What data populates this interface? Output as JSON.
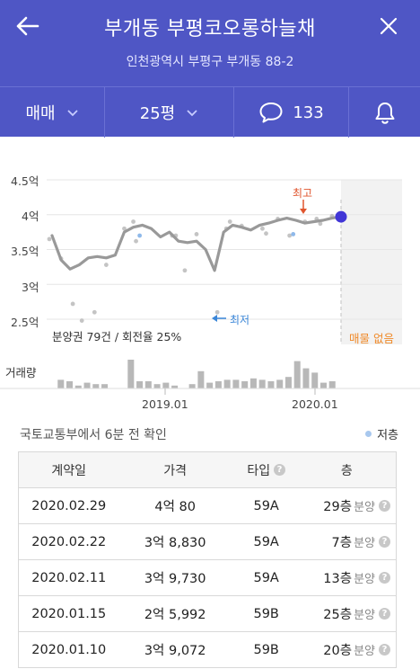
{
  "header": {
    "title": "부개동 부평코오롱하늘채",
    "address": "인천광역시 부평구 부개동 88-2"
  },
  "toolbar": {
    "trade_type": "매매",
    "size": "25평",
    "comment_count": "133"
  },
  "chart": {
    "sub_label": "분양권 79건 / 회전율 25%",
    "no_listing": "매물 없음",
    "volume_label": "거래량",
    "high_label": "최고",
    "low_label": "최저",
    "y_ticks": [
      "4.5억",
      "4억",
      "3.5억",
      "3억",
      "2.5억"
    ],
    "x_ticks": [
      "2019.01",
      "2020.01"
    ],
    "colors": {
      "line": "#999999",
      "current": "#4136d6",
      "low": "#3a86d8",
      "high": "#e0552e",
      "bar": "#b8b8b8"
    }
  },
  "chart_data": {
    "type": "line",
    "ylim": [
      2.5,
      4.5
    ],
    "y_unit": "억",
    "series": [
      {
        "values": [
          3.7,
          3.35,
          3.22,
          3.28,
          3.38,
          3.4,
          3.38,
          3.42,
          3.75,
          3.82,
          3.85,
          3.8,
          3.68,
          3.75,
          3.62,
          3.6,
          3.62,
          3.5,
          3.2,
          3.75,
          3.85,
          3.82,
          3.78,
          3.85,
          3.88,
          3.92,
          3.95,
          3.92,
          3.88,
          3.9,
          3.92,
          3.95,
          3.97
        ]
      }
    ],
    "current_value": 3.97,
    "volume_relative": [
      0,
      0.3,
      0.25,
      0.1,
      0.2,
      0.15,
      0.15,
      0,
      0,
      1.0,
      0.25,
      0.25,
      0.15,
      0.2,
      0.1,
      0,
      0.15,
      0.6,
      0.2,
      0.25,
      0.3,
      0.3,
      0.25,
      0.35,
      0.3,
      0.25,
      0.3,
      0.4,
      0.95,
      0.7,
      0.55,
      0.2,
      0.25,
      0
    ]
  },
  "info": {
    "updated": "국토교통부에서 6분 전 확인",
    "legend_low": "저층"
  },
  "table": {
    "headers": {
      "date": "계약일",
      "price": "가격",
      "type": "타입",
      "floor": "층"
    },
    "rows": [
      {
        "date": "2020.02.29",
        "price": "4억 80",
        "type": "59A",
        "floor": "29층",
        "tag": "분양"
      },
      {
        "date": "2020.02.22",
        "price": "3억 8,830",
        "type": "59A",
        "floor": "7층",
        "tag": "분양"
      },
      {
        "date": "2020.02.11",
        "price": "3억 9,730",
        "type": "59A",
        "floor": "13층",
        "tag": "분양"
      },
      {
        "date": "2020.01.15",
        "price": "2억 5,992",
        "type": "59B",
        "floor": "25층",
        "tag": "분양"
      },
      {
        "date": "2020.01.10",
        "price": "3억 9,072",
        "type": "59B",
        "floor": "20층",
        "tag": "분양"
      }
    ]
  }
}
